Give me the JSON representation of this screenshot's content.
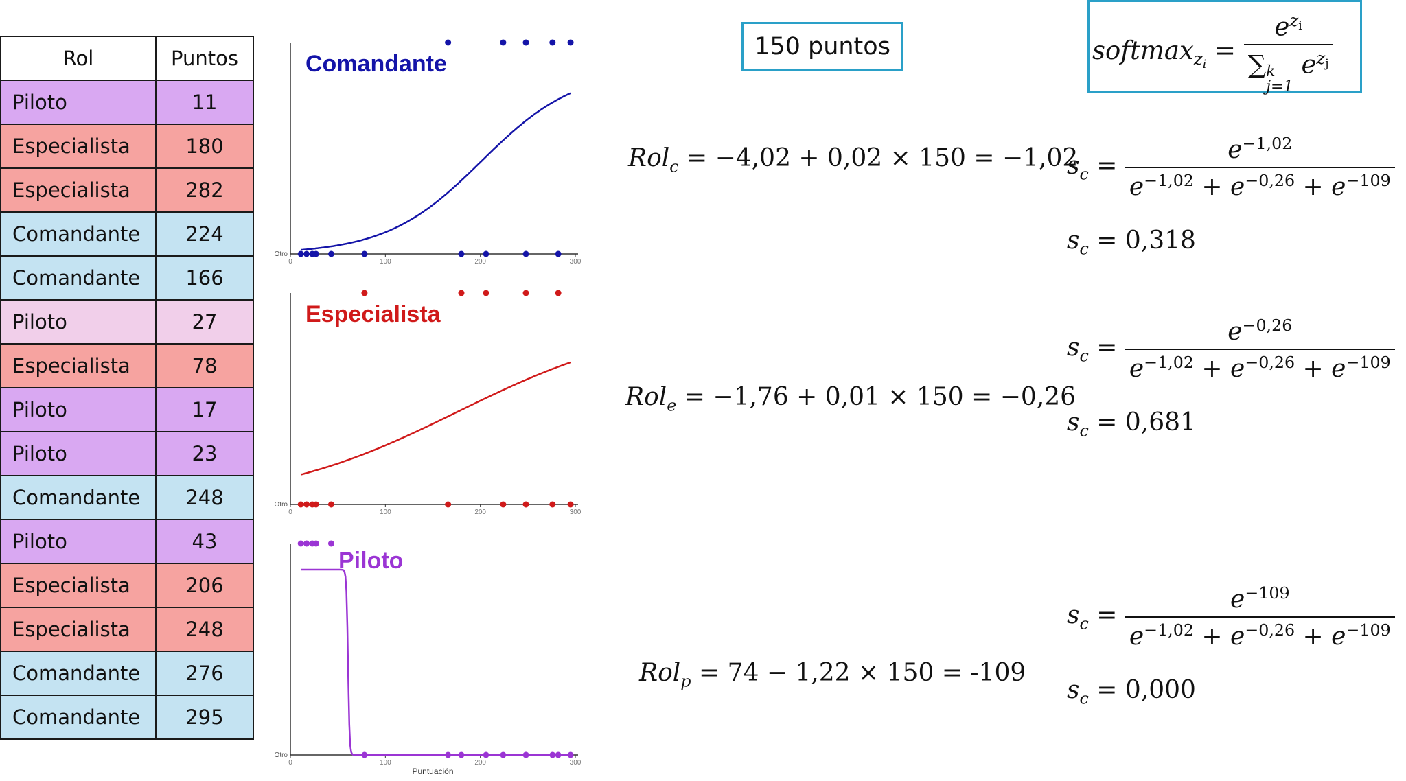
{
  "table": {
    "headers": {
      "rol": "Rol",
      "puntos": "Puntos"
    },
    "rows": [
      {
        "rol": "Piloto",
        "puntos": "11",
        "color": "#d9a8f2"
      },
      {
        "rol": "Especialista",
        "puntos": "180",
        "color": "#f6a3a0"
      },
      {
        "rol": "Especialista",
        "puntos": "282",
        "color": "#f6a3a0"
      },
      {
        "rol": "Comandante",
        "puntos": "224",
        "color": "#c4e3f2"
      },
      {
        "rol": "Comandante",
        "puntos": "166",
        "color": "#c4e3f2"
      },
      {
        "rol": "Piloto",
        "puntos": "27",
        "color": "#f1cfea"
      },
      {
        "rol": "Especialista",
        "puntos": "78",
        "color": "#f6a3a0"
      },
      {
        "rol": "Piloto",
        "puntos": "17",
        "color": "#d9a8f2"
      },
      {
        "rol": "Piloto",
        "puntos": "23",
        "color": "#d9a8f2"
      },
      {
        "rol": "Comandante",
        "puntos": "248",
        "color": "#c4e3f2"
      },
      {
        "rol": "Piloto",
        "puntos": "43",
        "color": "#d9a8f2"
      },
      {
        "rol": "Especialista",
        "puntos": "206",
        "color": "#f6a3a0"
      },
      {
        "rol": "Especialista",
        "puntos": "248",
        "color": "#f6a3a0"
      },
      {
        "rol": "Comandante",
        "puntos": "276",
        "color": "#c4e3f2"
      },
      {
        "rol": "Comandante",
        "puntos": "295",
        "color": "#c4e3f2"
      }
    ]
  },
  "charts": [
    {
      "title": "Comandante",
      "color": "#1414a8",
      "y_label": "Otro",
      "x_ticks": [
        "0",
        "100",
        "200",
        "300"
      ],
      "x_label": "",
      "top_points": [
        166,
        224,
        248,
        276,
        295
      ],
      "bottom_points": [
        11,
        17,
        23,
        27,
        43,
        78,
        180,
        206,
        248,
        282
      ]
    },
    {
      "title": "Especialista",
      "color": "#d01a1a",
      "y_label": "Otro",
      "x_ticks": [
        "0",
        "100",
        "200",
        "300"
      ],
      "x_label": "",
      "top_points": [
        78,
        180,
        206,
        248,
        282
      ],
      "bottom_points": [
        11,
        17,
        23,
        27,
        43,
        166,
        224,
        248,
        276,
        295
      ]
    },
    {
      "title": "Piloto",
      "color": "#9b35d4",
      "y_label": "Otro",
      "x_ticks": [
        "0",
        "100",
        "200",
        "300"
      ],
      "x_label": "Puntuación",
      "top_points": [
        11,
        17,
        23,
        27,
        43
      ],
      "bottom_points": [
        78,
        166,
        180,
        206,
        224,
        248,
        248,
        276,
        282,
        295
      ]
    }
  ],
  "puntos_box": "150 puntos",
  "softmax": {
    "lhs": "softmax",
    "lhs_sub": "z",
    "lhs_subsub": "i",
    "num_base": "e",
    "num_sup": "z",
    "num_supsub": "i",
    "den_sum": "∑",
    "den_sub": "j=1",
    "den_sup": "k",
    "den_base": "e",
    "den_exp": "z",
    "den_exp_sub": "j"
  },
  "equations": [
    {
      "lhs": "Rol",
      "sub": "c",
      "rhs": " = −4,02 + 0,02 × 150 = −1,02"
    },
    {
      "lhs": "Rol",
      "sub": "e",
      "rhs": " = −1,76 + 0,01 × 150 = −0,26"
    },
    {
      "lhs": "Rol",
      "sub": "p",
      "rhs": " = 74 − 1,22 × 150 = -109"
    }
  ],
  "softmax_results": [
    {
      "lhs": "s",
      "sub": "c",
      "num_exp": "−1,02",
      "den": [
        "−1,02",
        "−0,26",
        "−109"
      ],
      "value": "0,318"
    },
    {
      "lhs": "s",
      "sub": "c",
      "num_exp": "−0,26",
      "den": [
        "−1,02",
        "−0,26",
        "−109"
      ],
      "value": "0,681"
    },
    {
      "lhs": "s",
      "sub": "c",
      "num_exp": "−109",
      "den": [
        "−1,02",
        "−0,26",
        "−109"
      ],
      "value": "0,000"
    }
  ]
}
